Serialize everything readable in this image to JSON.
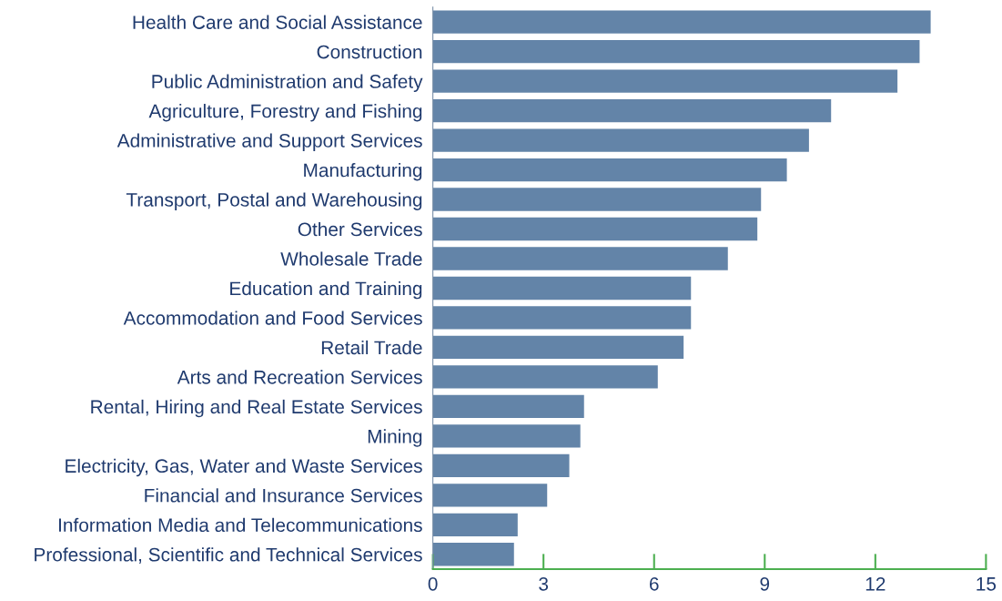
{
  "chart_data": {
    "type": "bar",
    "orientation": "horizontal",
    "categories": [
      "Health Care and Social Assistance",
      "Construction",
      "Public Administration and Safety",
      "Agriculture, Forestry and Fishing",
      "Administrative and Support Services",
      "Manufacturing",
      "Transport, Postal and Warehousing",
      "Other Services",
      "Wholesale Trade",
      "Education and Training",
      "Accommodation and Food Services",
      "Retail Trade",
      "Arts and Recreation Services",
      "Rental, Hiring and Real Estate Services",
      "Mining",
      "Electricity, Gas, Water and Waste Services",
      "Financial and Insurance Services",
      "Information Media and Telecommunications",
      "Professional, Scientific and Technical Services"
    ],
    "values": [
      13.5,
      13.2,
      12.6,
      10.8,
      10.2,
      9.6,
      8.9,
      8.8,
      8.0,
      7.0,
      7.0,
      6.8,
      6.1,
      4.1,
      4.0,
      3.7,
      3.1,
      2.3,
      2.2
    ],
    "color": "#6384a8",
    "xlim": [
      0,
      15
    ],
    "xticks": [
      0,
      3,
      6,
      9,
      12,
      15
    ],
    "grid": false
  }
}
